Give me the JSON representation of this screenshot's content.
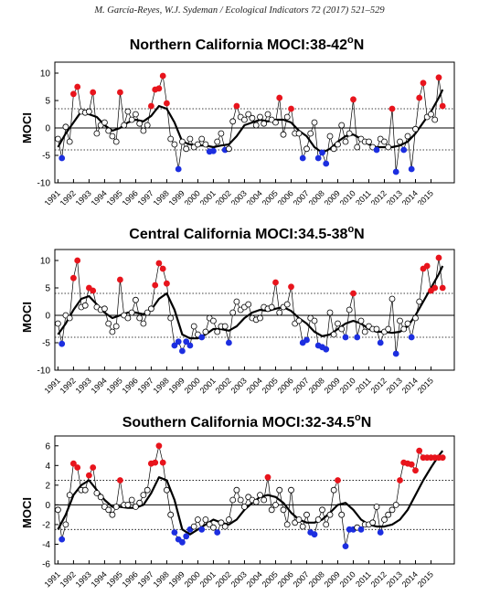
{
  "header": "M. García-Reyes, W.J. Sydeman / Ecological Indicators 72 (2017) 521–529",
  "colors": {
    "positive": "#e8141c",
    "negative": "#1c2ee0",
    "neutral": "#ffffff",
    "smooth": "#000000"
  },
  "chart_data": [
    {
      "type": "line",
      "title_main": "Northern California MOCI:38-42",
      "title_sup": "o",
      "title_end": "N",
      "ylabel": "MOCI",
      "ylim": [
        -10,
        12
      ],
      "yticks": [
        -10,
        -5,
        0,
        5,
        10
      ],
      "dotted_lines": [
        3.5,
        -4
      ],
      "xlim": [
        1990.8,
        2016.5
      ],
      "xticks": [
        "1991",
        "1992",
        "1993",
        "1994",
        "1995",
        "1996",
        "1997",
        "1998",
        "1999",
        "2000",
        "2001",
        "2002",
        "2003",
        "2004",
        "2005",
        "2006",
        "2007",
        "2008",
        "2009",
        "2010",
        "2011",
        "2012",
        "2013",
        "2014",
        "2015"
      ],
      "series": [
        {
          "x": [
            1991,
            1991.25,
            1991.5,
            1991.75,
            1992,
            1992.25,
            1992.5,
            1992.75,
            1993,
            1993.25,
            1993.5,
            1993.75,
            1994,
            1994.25,
            1994.5,
            1994.75,
            1995,
            1995.25,
            1995.5,
            1995.75,
            1996,
            1996.25,
            1996.5,
            1996.75,
            1997,
            1997.25,
            1997.5,
            1997.75,
            1998,
            1998.25,
            1998.5,
            1998.75,
            1999,
            1999.25,
            1999.5,
            1999.75,
            2000,
            2000.25,
            2000.5,
            2000.75,
            2001,
            2001.25,
            2001.5,
            2001.75,
            2002,
            2002.25,
            2002.5,
            2002.75,
            2003,
            2003.25,
            2003.5,
            2003.75,
            2004,
            2004.25,
            2004.5,
            2004.75,
            2005,
            2005.25,
            2005.5,
            2005.75,
            2006,
            2006.25,
            2006.5,
            2006.75,
            2007,
            2007.25,
            2007.5,
            2007.75,
            2008,
            2008.25,
            2008.5,
            2008.75,
            2009,
            2009.25,
            2009.5,
            2009.75,
            2010,
            2010.25,
            2010.5,
            2010.75,
            2011,
            2011.25,
            2011.5,
            2011.75,
            2012,
            2012.25,
            2012.5,
            2012.75,
            2013,
            2013.25,
            2013.5,
            2013.75,
            2014,
            2014.25,
            2014.5,
            2014.75,
            2015,
            2015.25,
            2015.5,
            2015.75
          ],
          "y": [
            -2,
            -5.5,
            0.2,
            -2.5,
            6.2,
            7.5,
            3,
            2.8,
            3,
            6.5,
            -1,
            0.5,
            1,
            -0.5,
            -1.5,
            -2.5,
            6.5,
            0.5,
            3,
            1.5,
            2.5,
            0.8,
            -0.5,
            0.5,
            4,
            7,
            7.2,
            9.5,
            4.5,
            -2,
            -3,
            -7.5,
            -2.5,
            -3.8,
            -2,
            -3.5,
            -3,
            -2,
            -3,
            -4.3,
            -4.2,
            -2.5,
            -1,
            -4,
            -3.8,
            1.2,
            4,
            2,
            1.5,
            2.5,
            1.8,
            0.5,
            2,
            0.8,
            2.5,
            1.5,
            1,
            5.5,
            -1.2,
            2,
            3.5,
            -1,
            -1,
            -5.5,
            -3.8,
            -1,
            1,
            -5.5,
            -4.5,
            -6.5,
            -1.5,
            -3.8,
            -3,
            0.5,
            -2.5,
            -1,
            5.2,
            -3.5,
            -2,
            -2.5,
            -2.5,
            -3.5,
            -4,
            -2,
            -2.5,
            -3.5,
            3.5,
            -8,
            -2.5,
            -4,
            -1.5,
            -7.5,
            -0.2,
            5.5,
            8.2,
            2,
            2.5,
            1.5,
            9.2,
            4
          ]
        }
      ],
      "smooth": {
        "x": [
          1991,
          1991.5,
          1992,
          1992.5,
          1993,
          1993.5,
          1994,
          1994.5,
          1995,
          1995.5,
          1996,
          1996.5,
          1997,
          1997.5,
          1998,
          1998.5,
          1999,
          1999.5,
          2000,
          2000.5,
          2001,
          2001.5,
          2002,
          2002.5,
          2003,
          2003.5,
          2004,
          2004.5,
          2005,
          2005.5,
          2006,
          2006.5,
          2007,
          2007.5,
          2008,
          2008.5,
          2009,
          2009.5,
          2010,
          2010.5,
          2011,
          2011.5,
          2012,
          2012.5,
          2013,
          2013.5,
          2014,
          2014.5,
          2015,
          2015.5,
          2015.75
        ],
        "y": [
          -3.5,
          -1,
          1,
          3,
          2.5,
          2,
          0.5,
          -0.5,
          0,
          1,
          1.5,
          1.2,
          2.2,
          4,
          3.5,
          1,
          -2.5,
          -3,
          -3.2,
          -3.2,
          -3.5,
          -3.2,
          -3,
          -1.5,
          0.5,
          1,
          1.5,
          1.2,
          1.5,
          1.5,
          1,
          -0.5,
          -1.5,
          -3.5,
          -4.5,
          -3.8,
          -2.5,
          -1.5,
          -1.2,
          -2,
          -3,
          -3.5,
          -3.5,
          -3.5,
          -3.2,
          -2.5,
          -1,
          1,
          3,
          5.5,
          7
        ]
      }
    },
    {
      "type": "line",
      "title_main": "Central California MOCI:34.5-38",
      "title_sup": "o",
      "title_end": "N",
      "ylabel": "MOCI",
      "ylim": [
        -10,
        12
      ],
      "yticks": [
        -10,
        -5,
        0,
        5,
        10
      ],
      "dotted_lines": [
        4,
        -4
      ],
      "xlim": [
        1990.8,
        2016.5
      ],
      "xticks": [
        "1991",
        "1992",
        "1993",
        "1994",
        "1995",
        "1996",
        "1997",
        "1998",
        "1999",
        "2000",
        "2001",
        "2002",
        "2003",
        "2004",
        "2005",
        "2006",
        "2007",
        "2008",
        "2009",
        "2010",
        "2011",
        "2012",
        "2013",
        "2014",
        "2015"
      ],
      "series": [
        {
          "x": [
            1991,
            1991.25,
            1991.5,
            1991.75,
            1992,
            1992.25,
            1992.5,
            1992.75,
            1993,
            1993.25,
            1993.5,
            1993.75,
            1994,
            1994.25,
            1994.5,
            1994.75,
            1995,
            1995.25,
            1995.5,
            1995.75,
            1996,
            1996.25,
            1996.5,
            1996.75,
            1997,
            1997.25,
            1997.5,
            1997.75,
            1998,
            1998.25,
            1998.5,
            1998.75,
            1999,
            1999.25,
            1999.5,
            1999.75,
            2000,
            2000.25,
            2000.5,
            2000.75,
            2001,
            2001.25,
            2001.5,
            2001.75,
            2002,
            2002.25,
            2002.5,
            2002.75,
            2003,
            2003.25,
            2003.5,
            2003.75,
            2004,
            2004.25,
            2004.5,
            2004.75,
            2005,
            2005.25,
            2005.5,
            2005.75,
            2006,
            2006.25,
            2006.5,
            2006.75,
            2007,
            2007.25,
            2007.5,
            2007.75,
            2008,
            2008.25,
            2008.5,
            2008.75,
            2009,
            2009.25,
            2009.5,
            2009.75,
            2010,
            2010.25,
            2010.5,
            2010.75,
            2011,
            2011.25,
            2011.5,
            2011.75,
            2012,
            2012.25,
            2012.5,
            2012.75,
            2013,
            2013.25,
            2013.5,
            2013.75,
            2014,
            2014.25,
            2014.5,
            2014.75,
            2015,
            2015.25,
            2015.5,
            2015.75
          ],
          "y": [
            -1.5,
            -5.2,
            0,
            -0.5,
            6.8,
            10,
            1.5,
            1.8,
            5,
            4.5,
            1.5,
            1,
            1.2,
            -1.5,
            -3,
            -2,
            6.5,
            0,
            -0.5,
            0.5,
            2.8,
            -0.5,
            -1.5,
            0.5,
            1.2,
            5.5,
            9.5,
            8.5,
            5.8,
            -0.5,
            -5.5,
            -4.8,
            -6.5,
            -4.8,
            -5.5,
            -2,
            -3.5,
            -4,
            -3,
            -0.5,
            -1,
            -3,
            -2,
            -2,
            -5,
            0.5,
            2.5,
            1,
            1.5,
            2,
            -0.5,
            -0.8,
            -0.5,
            1.5,
            1.2,
            1.5,
            6,
            0.5,
            1.5,
            2,
            5.2,
            -1.5,
            -1,
            -5,
            -4.5,
            -0.5,
            -1,
            -5.5,
            -5.8,
            -6.2,
            0.5,
            -3.5,
            -1.5,
            -2.5,
            -4,
            1,
            4,
            -4,
            -1,
            -3,
            -2,
            -2.5,
            -2.5,
            -5,
            -3,
            -2.5,
            3,
            -7,
            -1,
            -2.5,
            -1.5,
            -4,
            -0.5,
            2.5,
            8.5,
            9,
            4.5,
            5,
            10.5,
            5
          ]
        }
      ],
      "smooth": {
        "x": [
          1991,
          1991.5,
          1992,
          1992.5,
          1993,
          1993.5,
          1994,
          1994.5,
          1995,
          1995.5,
          1996,
          1996.5,
          1997,
          1997.5,
          1998,
          1998.5,
          1999,
          1999.5,
          2000,
          2000.5,
          2001,
          2001.5,
          2002,
          2002.5,
          2003,
          2003.5,
          2004,
          2004.5,
          2005,
          2005.5,
          2006,
          2006.5,
          2007,
          2007.5,
          2008,
          2008.5,
          2009,
          2009.5,
          2010,
          2010.5,
          2011,
          2011.5,
          2012,
          2012.5,
          2013,
          2013.5,
          2014,
          2014.5,
          2015,
          2015.5,
          2015.75
        ],
        "y": [
          -3.5,
          -1.5,
          1,
          3,
          3.5,
          2,
          0.5,
          -0.5,
          0,
          0.5,
          0.5,
          0.2,
          1,
          3,
          4,
          1,
          -3.5,
          -4.2,
          -4.2,
          -3.5,
          -2.5,
          -2.5,
          -2.8,
          -2,
          -0.5,
          0.5,
          1,
          0.8,
          1.2,
          1.5,
          0.8,
          -0.5,
          -1.5,
          -3,
          -3.8,
          -3.5,
          -2.5,
          -1.5,
          -1,
          -1.5,
          -2.5,
          -3,
          -3,
          -3.2,
          -3,
          -2,
          0,
          2.5,
          5,
          7.5,
          9
        ]
      }
    },
    {
      "type": "line",
      "title_main": "Southern California MOCI:32-34.5",
      "title_sup": "o",
      "title_end": "N",
      "ylabel": "MOCI",
      "ylim": [
        -6,
        7
      ],
      "yticks": [
        -6,
        -4,
        -2,
        0,
        2,
        4,
        6
      ],
      "dotted_lines": [
        2.5,
        -2.5
      ],
      "xlim": [
        1990.8,
        2016.5
      ],
      "xticks": [
        "1991",
        "1992",
        "1993",
        "1994",
        "1995",
        "1996",
        "1997",
        "1998",
        "1999",
        "2000",
        "2001",
        "2002",
        "2003",
        "2004",
        "2005",
        "2006",
        "2007",
        "2008",
        "2009",
        "2010",
        "2011",
        "2012",
        "2013",
        "2014",
        "2015"
      ],
      "series": [
        {
          "x": [
            1991,
            1991.25,
            1991.5,
            1991.75,
            1992,
            1992.25,
            1992.5,
            1992.75,
            1993,
            1993.25,
            1993.5,
            1993.75,
            1994,
            1994.25,
            1994.5,
            1994.75,
            1995,
            1995.25,
            1995.5,
            1995.75,
            1996,
            1996.25,
            1996.5,
            1996.75,
            1997,
            1997.25,
            1997.5,
            1997.75,
            1998,
            1998.25,
            1998.5,
            1998.75,
            1999,
            1999.25,
            1999.5,
            1999.75,
            2000,
            2000.25,
            2000.5,
            2000.75,
            2001,
            2001.25,
            2001.5,
            2001.75,
            2002,
            2002.25,
            2002.5,
            2002.75,
            2003,
            2003.25,
            2003.5,
            2003.75,
            2004,
            2004.25,
            2004.5,
            2004.75,
            2005,
            2005.25,
            2005.5,
            2005.75,
            2006,
            2006.25,
            2006.5,
            2006.75,
            2007,
            2007.25,
            2007.5,
            2007.75,
            2008,
            2008.25,
            2008.5,
            2008.75,
            2009,
            2009.25,
            2009.5,
            2009.75,
            2010,
            2010.25,
            2010.5,
            2010.75,
            2011,
            2011.25,
            2011.5,
            2011.75,
            2012,
            2012.25,
            2012.5,
            2012.75,
            2013,
            2013.25,
            2013.5,
            2013.75,
            2014,
            2014.25,
            2014.5,
            2014.75,
            2015,
            2015.25,
            2015.5,
            2015.75
          ],
          "y": [
            -0.5,
            -3.5,
            -2,
            1,
            4.2,
            3.8,
            1.5,
            1.5,
            3,
            3.8,
            1.2,
            0.8,
            -0.2,
            -0.5,
            -1,
            -0.2,
            2.5,
            0,
            0,
            0.5,
            -0.2,
            0.2,
            1,
            1.5,
            4.2,
            4.3,
            6,
            4.3,
            1.5,
            -1,
            -2.8,
            -3.5,
            -3.8,
            -3.2,
            -2.5,
            -2.2,
            -1.5,
            -2.5,
            -1.5,
            -2,
            -2.3,
            -2.8,
            -1.8,
            -2.2,
            -1.5,
            0.5,
            1.5,
            0.5,
            -0.2,
            0.8,
            0.5,
            0.3,
            1,
            0.5,
            2.8,
            -0.5,
            0,
            1.5,
            -0.5,
            -2,
            1.5,
            -1.8,
            -1.5,
            -2.2,
            -1,
            -2.8,
            -3,
            -1.5,
            -0.5,
            -2,
            -1,
            1.5,
            2.5,
            -1,
            -4.2,
            -2.5,
            -2.5,
            -2.3,
            -2.5,
            -2,
            -2,
            -1.8,
            -0.2,
            -2.8,
            -1.5,
            -1,
            -0.5,
            0,
            2.5,
            4.3,
            4.2,
            4.1,
            3.5,
            5.5,
            4.8,
            4.8,
            4.8,
            4.8,
            4.8,
            4.8
          ]
        }
      ],
      "smooth": {
        "x": [
          1991,
          1991.5,
          1992,
          1992.5,
          1993,
          1993.5,
          1994,
          1994.5,
          1995,
          1995.5,
          1996,
          1996.5,
          1997,
          1997.5,
          1998,
          1998.5,
          1999,
          1999.5,
          2000,
          2000.5,
          2001,
          2001.5,
          2002,
          2002.5,
          2003,
          2003.5,
          2004,
          2004.5,
          2005,
          2005.5,
          2006,
          2006.5,
          2007,
          2007.5,
          2008,
          2008.5,
          2009,
          2009.5,
          2010,
          2010.5,
          2011,
          2011.5,
          2012,
          2012.5,
          2013,
          2013.5,
          2014,
          2014.5,
          2015,
          2015.5,
          2015.75
        ],
        "y": [
          -2.5,
          -1,
          1,
          2,
          2.5,
          1.5,
          0.5,
          -0.2,
          -0.2,
          -0.3,
          -0.3,
          0,
          1.2,
          2.8,
          2.5,
          0.5,
          -2.5,
          -3,
          -2.5,
          -2,
          -1.5,
          -1.8,
          -2,
          -1.5,
          -0.5,
          0.2,
          0.8,
          1,
          0.8,
          0.2,
          -0.8,
          -1.5,
          -1.8,
          -1.8,
          -1.5,
          -0.8,
          0,
          0.2,
          -0.5,
          -1.5,
          -2,
          -2.2,
          -2.2,
          -2,
          -1.5,
          -0.5,
          1,
          2.5,
          3.8,
          5,
          5.5
        ]
      }
    }
  ]
}
